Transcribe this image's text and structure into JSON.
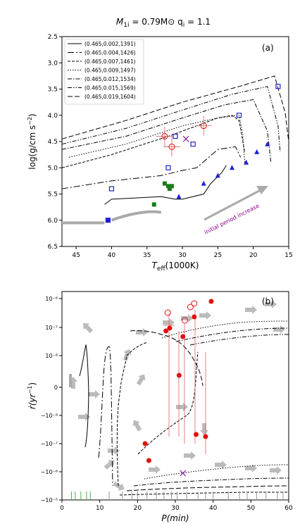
{
  "figure": {
    "title": "M",
    "title_sub": "1i",
    "title_rest": " = 0.79M",
    "title_sun": "⊙",
    "title_q": " q",
    "title_q_sub": "i",
    "title_q_rest": " = 1.1"
  },
  "chart_data": [
    {
      "type": "line",
      "panel_label": "(a)",
      "xlabel": "T",
      "xlabel_sub": "eff",
      "xlabel_rest": "(1000K)",
      "ylabel": "log(g/cm s",
      "ylabel_sup": "−2",
      "ylabel_end": ")",
      "x_inverted": true,
      "y_inverted": true,
      "xlim": [
        47,
        15
      ],
      "ylim": [
        2.5,
        6.5
      ],
      "xticks": [
        45,
        40,
        35,
        30,
        25,
        20,
        15
      ],
      "yticks": [
        2.5,
        3.0,
        3.5,
        4.0,
        4.5,
        5.0,
        5.5,
        6.0,
        6.5
      ],
      "legend_position": "top-left",
      "annotation": "initial period increase",
      "series": [
        {
          "name": "(0.465,0.002,1391)",
          "dash": "",
          "x": [
            41,
            40,
            33,
            31,
            30,
            27,
            26,
            24.5,
            24,
            23.8
          ],
          "y": [
            5.7,
            5.6,
            5.55,
            5.6,
            5.6,
            5.5,
            5.3,
            5.1,
            5.0,
            4.95
          ]
        },
        {
          "name": "(0.465,0.004,1426)",
          "dash": "9,3,2,3",
          "x": [
            47,
            40,
            33,
            30,
            28,
            25,
            22.5,
            21.8
          ],
          "y": [
            5.4,
            5.25,
            5.15,
            5.05,
            5.0,
            4.65,
            4.6,
            4.8
          ]
        },
        {
          "name": "(0.465,0.007,1461)",
          "dash": "4,2",
          "x": [
            47,
            40,
            32,
            28,
            25,
            23,
            22,
            21.2
          ],
          "y": [
            5.0,
            4.75,
            4.4,
            4.2,
            4.05,
            4.0,
            4.1,
            4.7
          ]
        },
        {
          "name": "(0.465,0.009,1497)",
          "dash": "1.5,2",
          "x": [
            46,
            38,
            30,
            25,
            22,
            21.5,
            21.2
          ],
          "y": [
            4.8,
            4.55,
            4.2,
            4.05,
            4.0,
            4.35,
            4.9
          ]
        },
        {
          "name": "(0.465,0.012,1534)",
          "dash": "6,2,1.5,2",
          "x": [
            47,
            38,
            30,
            24,
            20,
            18,
            17.5
          ],
          "y": [
            4.65,
            4.4,
            4.05,
            3.8,
            3.7,
            4.3,
            4.9
          ]
        },
        {
          "name": "(0.465,0.015,1569)",
          "dash": "6,2,1.5,2,1.5,2",
          "x": [
            47,
            38,
            30,
            23,
            18,
            16.5,
            16.2
          ],
          "y": [
            4.55,
            4.25,
            3.9,
            3.6,
            3.45,
            4.2,
            4.7
          ]
        },
        {
          "name": "(0.465,0.019,1604)",
          "dash": "7,3",
          "x": [
            47,
            38,
            30,
            22,
            17,
            15.5,
            15
          ],
          "y": [
            4.45,
            4.1,
            3.75,
            3.45,
            3.25,
            3.95,
            4.5
          ]
        }
      ],
      "markers_blue_squares": {
        "x": [
          40.5,
          40,
          32,
          28.5,
          22,
          16.5,
          31
        ],
        "y": [
          6.0,
          5.4,
          5.0,
          4.55,
          4.0,
          3.45,
          4.4
        ]
      },
      "markers_blue_triangles": {
        "x": [
          30.5,
          27,
          25,
          23,
          21,
          19.5,
          18
        ],
        "y": [
          5.55,
          5.3,
          5.15,
          5.0,
          4.9,
          4.7,
          4.55
        ]
      },
      "markers_green_squares": {
        "x": [
          34,
          32.5,
          32,
          31.8,
          31.5
        ],
        "y": [
          5.7,
          5.3,
          5.35,
          5.4,
          5.35
        ]
      },
      "markers_red_open_circles": {
        "x": [
          32.5,
          31.5,
          27
        ],
        "y": [
          4.4,
          4.6,
          4.2
        ]
      },
      "markers_purple_cross": {
        "x": [
          29.5
        ],
        "y": [
          4.45
        ]
      }
    },
    {
      "type": "line",
      "panel_label": "(b)",
      "xlabel": "P(min)",
      "ylabel": "ṙ(yr",
      "ylabel_sup": "−1",
      "ylabel_end": ")",
      "y_scale": "symlog",
      "xlim": [
        0,
        60
      ],
      "xticks": [
        0,
        10,
        20,
        30,
        40,
        50,
        60
      ],
      "ytick_labels": [
        "10⁻⁶",
        "10⁻⁷",
        "10⁻⁸",
        "0",
        "−10⁻⁸",
        "−10⁻⁷",
        "−10⁻⁶",
        "−10⁻⁵"
      ],
      "markers_red_filled": {
        "x": [
          27.5,
          28.5,
          32,
          31,
          35,
          35.5,
          38,
          39.5,
          22,
          23
        ],
        "y_label": [
          "10⁻⁷",
          "10⁻⁷",
          "10⁻⁷",
          "10⁻⁸",
          "10⁻⁷",
          "−10⁻⁶",
          "−10⁻⁶",
          "10⁻⁶",
          "−10⁻⁶",
          "−10⁻⁶"
        ]
      },
      "markers_red_open": {
        "x": [
          28,
          32.5,
          34,
          35
        ],
        "y_label": [
          "10⁻⁶",
          "10⁻⁷",
          "10⁻⁶",
          "10⁻⁶"
        ]
      },
      "markers_purple_cross": {
        "x": [
          32
        ],
        "y_label": [
          "−10⁻⁶"
        ]
      }
    }
  ],
  "colors": {
    "blue": "#1f1fd6",
    "green": "#1a7a1a",
    "red": "#e01010",
    "purple": "#8a1aa8",
    "grey": "#aaaaaa",
    "annotation": "#8b008b"
  }
}
